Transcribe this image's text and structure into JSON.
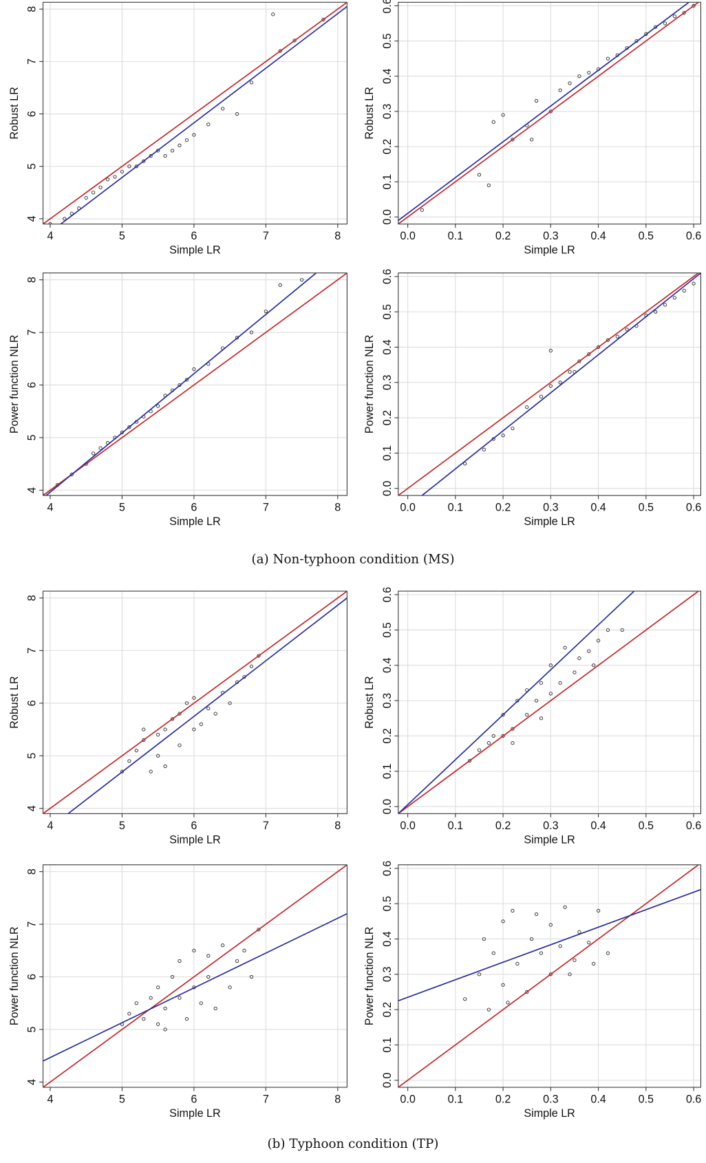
{
  "chart_data": [
    {
      "type": "scatter",
      "xlabel": "Simple LR",
      "ylabel": "Robust LR",
      "xlim": [
        3.9,
        8.13
      ],
      "ylim": [
        3.9,
        8.13
      ],
      "xticks": [
        4,
        5,
        6,
        7,
        8
      ],
      "yticks": [
        4,
        5,
        6,
        7,
        8
      ],
      "grid": true,
      "point_color": "#333333",
      "x": [
        4.0,
        4.2,
        4.3,
        4.4,
        4.5,
        4.6,
        4.7,
        4.8,
        4.9,
        5.0,
        5.1,
        5.2,
        5.3,
        5.4,
        5.5,
        5.6,
        5.7,
        5.8,
        5.9,
        6.0,
        6.2,
        6.4,
        6.6,
        6.8,
        7.2,
        7.4,
        7.8,
        7.1
      ],
      "y": [
        3.9,
        4.0,
        4.1,
        4.2,
        4.4,
        4.5,
        4.6,
        4.75,
        4.8,
        4.9,
        5.0,
        5.0,
        5.1,
        5.2,
        5.3,
        5.2,
        5.3,
        5.4,
        5.5,
        5.6,
        5.8,
        6.1,
        6.0,
        6.6,
        7.2,
        7.4,
        7.8,
        7.9
      ],
      "lines": [
        {
          "color": "#c0282d",
          "x": [
            3.9,
            8.13
          ],
          "y": [
            3.9,
            8.13
          ]
        },
        {
          "color": "#2a2f9a",
          "x": [
            4.1,
            8.13
          ],
          "y": [
            3.85,
            8.05
          ]
        }
      ]
    },
    {
      "type": "scatter",
      "xlabel": "Simple LR",
      "ylabel": "Robust LR",
      "xlim": [
        -0.02,
        0.615
      ],
      "ylim": [
        -0.02,
        0.61
      ],
      "xticks": [
        {
          "value": 0,
          "label": "0.0"
        },
        0.1,
        0.2,
        0.3,
        0.4,
        0.5,
        0.6
      ],
      "yticks": [
        {
          "value": 0,
          "label": "0.0"
        },
        0.1,
        0.2,
        0.3,
        0.4,
        0.5,
        0.6
      ],
      "grid": true,
      "point_color": "#333333",
      "x": [
        0.03,
        0.15,
        0.18,
        0.2,
        0.22,
        0.25,
        0.27,
        0.3,
        0.32,
        0.34,
        0.36,
        0.38,
        0.4,
        0.42,
        0.44,
        0.46,
        0.48,
        0.5,
        0.52,
        0.54,
        0.56,
        0.58,
        0.6,
        0.26,
        0.17
      ],
      "y": [
        0.02,
        0.12,
        0.27,
        0.29,
        0.22,
        0.26,
        0.33,
        0.3,
        0.36,
        0.38,
        0.4,
        0.41,
        0.42,
        0.45,
        0.46,
        0.48,
        0.5,
        0.52,
        0.54,
        0.55,
        0.57,
        0.58,
        0.6,
        0.22,
        0.09
      ],
      "lines": [
        {
          "color": "#c0282d",
          "x": [
            -0.02,
            0.61
          ],
          "y": [
            -0.02,
            0.61
          ]
        },
        {
          "color": "#2a2f9a",
          "x": [
            -0.02,
            0.59
          ],
          "y": [
            -0.01,
            0.61
          ]
        }
      ]
    },
    {
      "type": "scatter",
      "xlabel": "Simple LR",
      "ylabel": "Power function NLR",
      "xlim": [
        3.9,
        8.13
      ],
      "ylim": [
        3.9,
        8.13
      ],
      "xticks": [
        4,
        5,
        6,
        7,
        8
      ],
      "yticks": [
        4,
        5,
        6,
        7,
        8
      ],
      "grid": true,
      "point_color": "#333333",
      "x": [
        3.9,
        4.1,
        4.3,
        4.5,
        4.6,
        4.7,
        4.8,
        4.9,
        5.0,
        5.1,
        5.2,
        5.3,
        5.4,
        5.5,
        5.6,
        5.7,
        5.8,
        5.9,
        6.0,
        6.2,
        6.4,
        6.6,
        6.8,
        7.0,
        7.2,
        7.5
      ],
      "y": [
        3.9,
        4.1,
        4.3,
        4.5,
        4.7,
        4.8,
        4.9,
        5.0,
        5.1,
        5.2,
        5.3,
        5.4,
        5.5,
        5.6,
        5.8,
        5.9,
        6.0,
        6.1,
        6.3,
        6.4,
        6.7,
        6.9,
        7.0,
        7.4,
        7.9,
        8.0
      ],
      "lines": [
        {
          "color": "#c0282d",
          "x": [
            3.9,
            8.13
          ],
          "y": [
            3.9,
            8.13
          ]
        },
        {
          "color": "#2a2f9a",
          "x": [
            3.9,
            7.7
          ],
          "y": [
            3.85,
            8.13
          ]
        }
      ]
    },
    {
      "type": "scatter",
      "xlabel": "Simple LR",
      "ylabel": "Power function NLR",
      "xlim": [
        -0.02,
        0.615
      ],
      "ylim": [
        -0.02,
        0.61
      ],
      "xticks": [
        {
          "value": 0,
          "label": "0.0"
        },
        0.1,
        0.2,
        0.3,
        0.4,
        0.5,
        0.6
      ],
      "yticks": [
        {
          "value": 0,
          "label": "0.0"
        },
        0.1,
        0.2,
        0.3,
        0.4,
        0.5,
        0.6
      ],
      "grid": true,
      "point_color": "#333333",
      "x": [
        0.12,
        0.16,
        0.18,
        0.2,
        0.22,
        0.25,
        0.28,
        0.3,
        0.32,
        0.34,
        0.36,
        0.38,
        0.4,
        0.42,
        0.44,
        0.46,
        0.48,
        0.5,
        0.52,
        0.54,
        0.56,
        0.58,
        0.6,
        0.3,
        0.35
      ],
      "y": [
        0.07,
        0.11,
        0.14,
        0.15,
        0.17,
        0.23,
        0.26,
        0.29,
        0.3,
        0.33,
        0.36,
        0.38,
        0.4,
        0.42,
        0.43,
        0.45,
        0.46,
        0.49,
        0.5,
        0.52,
        0.54,
        0.56,
        0.58,
        0.39,
        0.33
      ],
      "lines": [
        {
          "color": "#c0282d",
          "x": [
            -0.02,
            0.61
          ],
          "y": [
            -0.02,
            0.61
          ]
        },
        {
          "color": "#2a2f9a",
          "x": [
            0.03,
            0.615
          ],
          "y": [
            -0.02,
            0.61
          ]
        }
      ]
    },
    {
      "type": "scatter",
      "xlabel": "Simple LR",
      "ylabel": "Robust LR",
      "xlim": [
        3.9,
        8.13
      ],
      "ylim": [
        3.9,
        8.13
      ],
      "xticks": [
        4,
        5,
        6,
        7,
        8
      ],
      "yticks": [
        4,
        5,
        6,
        7,
        8
      ],
      "grid": true,
      "point_color": "#333333",
      "x": [
        5.0,
        5.1,
        5.2,
        5.3,
        5.4,
        5.5,
        5.5,
        5.6,
        5.7,
        5.8,
        5.8,
        5.9,
        6.0,
        6.0,
        6.1,
        6.2,
        6.3,
        6.4,
        6.5,
        6.6,
        6.7,
        6.8,
        6.9,
        5.3,
        5.6
      ],
      "y": [
        4.7,
        4.9,
        5.1,
        5.3,
        4.7,
        5.4,
        5.0,
        5.5,
        5.7,
        5.8,
        5.2,
        6.0,
        6.1,
        5.5,
        5.6,
        5.9,
        5.8,
        6.2,
        6.0,
        6.4,
        6.5,
        6.7,
        6.9,
        5.5,
        4.8
      ],
      "lines": [
        {
          "color": "#c0282d",
          "x": [
            3.9,
            8.13
          ],
          "y": [
            3.9,
            8.13
          ]
        },
        {
          "color": "#2a2f9a",
          "x": [
            4.25,
            8.13
          ],
          "y": [
            3.9,
            8.0
          ]
        }
      ]
    },
    {
      "type": "scatter",
      "xlabel": "Simple LR",
      "ylabel": "Robust LR",
      "xlim": [
        -0.02,
        0.615
      ],
      "ylim": [
        -0.02,
        0.61
      ],
      "xticks": [
        {
          "value": 0,
          "label": "0.0"
        },
        0.1,
        0.2,
        0.3,
        0.4,
        0.5,
        0.6
      ],
      "yticks": [
        {
          "value": 0,
          "label": "0.0"
        },
        0.1,
        0.2,
        0.3,
        0.4,
        0.5,
        0.6
      ],
      "grid": true,
      "point_color": "#333333",
      "x": [
        0.13,
        0.15,
        0.17,
        0.18,
        0.2,
        0.2,
        0.22,
        0.23,
        0.25,
        0.25,
        0.27,
        0.28,
        0.3,
        0.3,
        0.32,
        0.33,
        0.35,
        0.36,
        0.38,
        0.39,
        0.4,
        0.42,
        0.45,
        0.22,
        0.28
      ],
      "y": [
        0.13,
        0.16,
        0.18,
        0.2,
        0.2,
        0.26,
        0.22,
        0.3,
        0.26,
        0.33,
        0.3,
        0.35,
        0.32,
        0.4,
        0.35,
        0.45,
        0.38,
        0.42,
        0.44,
        0.4,
        0.47,
        0.5,
        0.5,
        0.18,
        0.25
      ],
      "lines": [
        {
          "color": "#c0282d",
          "x": [
            -0.02,
            0.61
          ],
          "y": [
            -0.02,
            0.61
          ]
        },
        {
          "color": "#2a2f9a",
          "x": [
            -0.02,
            0.475
          ],
          "y": [
            -0.02,
            0.61
          ]
        }
      ]
    },
    {
      "type": "scatter",
      "xlabel": "Simple LR",
      "ylabel": "Power function NLR",
      "xlim": [
        3.9,
        8.13
      ],
      "ylim": [
        3.9,
        8.13
      ],
      "xticks": [
        4,
        5,
        6,
        7,
        8
      ],
      "yticks": [
        4,
        5,
        6,
        7,
        8
      ],
      "grid": true,
      "point_color": "#333333",
      "x": [
        5.0,
        5.1,
        5.2,
        5.3,
        5.4,
        5.5,
        5.5,
        5.6,
        5.7,
        5.8,
        5.8,
        5.9,
        6.0,
        6.0,
        6.1,
        6.2,
        6.3,
        6.4,
        6.5,
        6.6,
        6.7,
        6.8,
        6.9,
        5.6,
        6.2
      ],
      "y": [
        5.1,
        5.3,
        5.5,
        5.2,
        5.6,
        5.8,
        5.1,
        5.4,
        6.0,
        5.6,
        6.3,
        5.2,
        5.8,
        6.5,
        5.5,
        6.0,
        5.4,
        6.6,
        5.8,
        6.3,
        6.5,
        6.0,
        6.9,
        5.0,
        6.4
      ],
      "lines": [
        {
          "color": "#c0282d",
          "x": [
            3.9,
            8.13
          ],
          "y": [
            3.9,
            8.13
          ]
        },
        {
          "color": "#2a2f9a",
          "x": [
            3.9,
            8.13
          ],
          "y": [
            4.4,
            7.2
          ]
        }
      ]
    },
    {
      "type": "scatter",
      "xlabel": "Simple LR",
      "ylabel": "Power function NLR",
      "xlim": [
        -0.02,
        0.615
      ],
      "ylim": [
        -0.02,
        0.61
      ],
      "xticks": [
        {
          "value": 0,
          "label": "0.0"
        },
        0.1,
        0.2,
        0.3,
        0.4,
        0.5,
        0.6
      ],
      "yticks": [
        {
          "value": 0,
          "label": "0.0"
        },
        0.1,
        0.2,
        0.3,
        0.4,
        0.5,
        0.6
      ],
      "grid": true,
      "point_color": "#333333",
      "x": [
        0.12,
        0.15,
        0.17,
        0.18,
        0.2,
        0.2,
        0.22,
        0.23,
        0.25,
        0.26,
        0.28,
        0.3,
        0.3,
        0.32,
        0.33,
        0.35,
        0.36,
        0.38,
        0.4,
        0.42,
        0.21,
        0.27,
        0.34,
        0.16,
        0.39
      ],
      "y": [
        0.23,
        0.3,
        0.2,
        0.36,
        0.27,
        0.45,
        0.48,
        0.33,
        0.25,
        0.4,
        0.36,
        0.3,
        0.44,
        0.38,
        0.49,
        0.34,
        0.42,
        0.39,
        0.48,
        0.36,
        0.22,
        0.47,
        0.3,
        0.4,
        0.33
      ],
      "lines": [
        {
          "color": "#c0282d",
          "x": [
            -0.02,
            0.61
          ],
          "y": [
            -0.02,
            0.61
          ]
        },
        {
          "color": "#2a2f9a",
          "x": [
            -0.02,
            0.615
          ],
          "y": [
            0.225,
            0.54
          ]
        }
      ]
    }
  ],
  "captions": [
    "(a) Non-typhoon condition (MS)",
    "(b) Typhoon condition (TP)"
  ]
}
